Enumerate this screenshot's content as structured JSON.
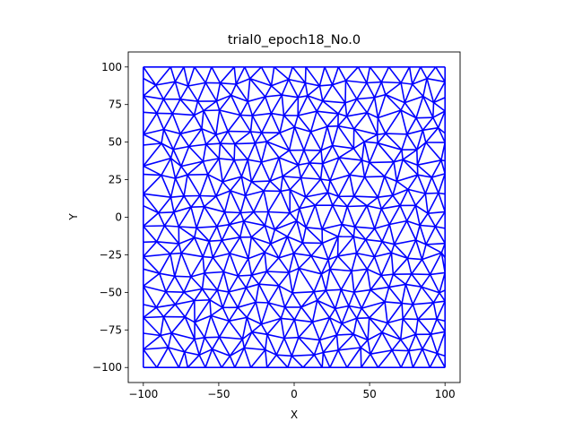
{
  "chart_data": {
    "type": "mesh",
    "title": "trial0_epoch18_No.0",
    "xlabel": "X",
    "ylabel": "Y",
    "xlim": [
      -110,
      110
    ],
    "ylim": [
      -110,
      110
    ],
    "xticks": [
      -100,
      -50,
      0,
      50,
      100
    ],
    "yticks": [
      -100,
      -75,
      -50,
      -25,
      0,
      25,
      50,
      75,
      100
    ],
    "xtick_labels": [
      "−100",
      "−50",
      "0",
      "50",
      "100"
    ],
    "ytick_labels": [
      "−100",
      "−75",
      "−50",
      "−25",
      "0",
      "25",
      "50",
      "75",
      "100"
    ],
    "domain": {
      "xmin": -100,
      "xmax": 100,
      "ymin": -100,
      "ymax": 100
    },
    "mesh": {
      "nx": 19,
      "ny": 19,
      "jitter": 3,
      "seed": 18
    },
    "edge_color": "#0000ff",
    "grid": false
  }
}
